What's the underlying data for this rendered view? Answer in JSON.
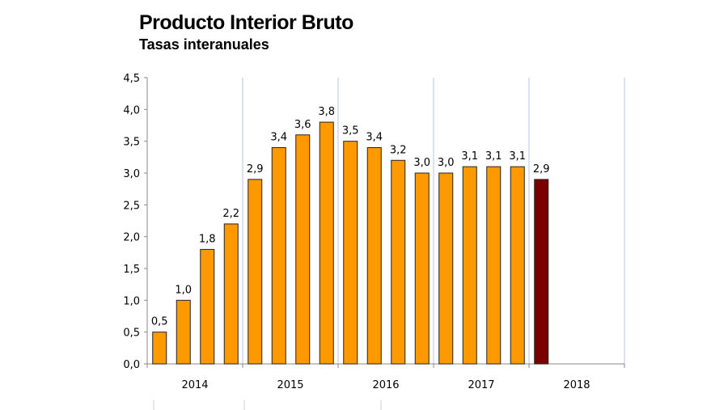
{
  "chart_data": {
    "type": "bar",
    "title": "Producto Interior Bruto",
    "subtitle": "Tasas interanuales",
    "xlabel": "",
    "ylabel": "",
    "ylim": [
      0,
      4.5
    ],
    "yticks": [
      "0,0",
      "0,5",
      "1,0",
      "1,5",
      "2,0",
      "2,5",
      "3,0",
      "3,5",
      "4,0",
      "4,5"
    ],
    "year_labels": [
      "2014",
      "2015",
      "2016",
      "2017",
      "2018"
    ],
    "quarters_per_year": 4,
    "values": [
      0.5,
      1.0,
      1.8,
      2.2,
      2.9,
      3.4,
      3.6,
      3.8,
      3.5,
      3.4,
      3.2,
      3.0,
      3.0,
      3.1,
      3.1,
      3.1,
      2.9
    ],
    "data_labels": [
      "0,5",
      "1,0",
      "1,8",
      "2,2",
      "2,9",
      "3,4",
      "3,6",
      "3,8",
      "3,5",
      "3,4",
      "3,2",
      "3,0",
      "3,0",
      "3,1",
      "3,1",
      "3,1",
      "2,9"
    ],
    "colors": {
      "bar": "#FF9900",
      "highlight": "#7A0000",
      "gridline": "#B4C6E7"
    },
    "highlight_index": 16,
    "grid": "vertical year separators"
  }
}
